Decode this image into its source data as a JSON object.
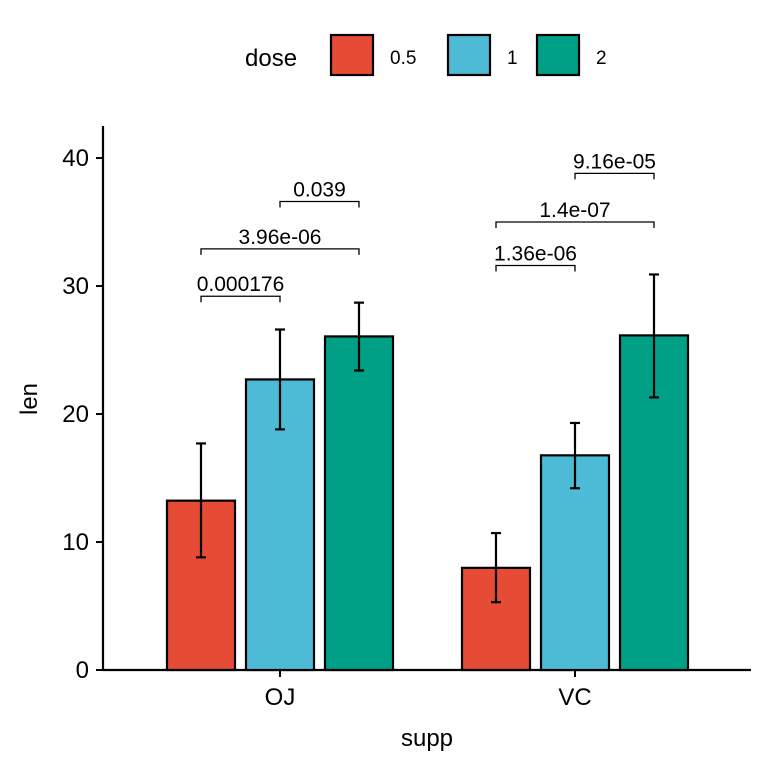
{
  "chart_data": {
    "type": "bar",
    "title": "",
    "xlabel": "supp",
    "ylabel": "len",
    "ylim": [
      0,
      42.5
    ],
    "yticks": [
      0,
      10,
      20,
      30,
      40
    ],
    "grid": false,
    "categories": [
      "OJ",
      "VC"
    ],
    "legend": {
      "title": "dose",
      "position": "top",
      "entries": [
        {
          "label": "0.5",
          "color": "#E64B35"
        },
        {
          "label": "1",
          "color": "#4DBBD5"
        },
        {
          "label": "2",
          "color": "#00A087"
        }
      ]
    },
    "series": [
      {
        "name": "0.5",
        "color": "#E64B35",
        "values": [
          13.23,
          7.98
        ],
        "error_low": [
          8.8,
          5.3
        ],
        "error_high": [
          17.7,
          10.7
        ]
      },
      {
        "name": "1",
        "color": "#4DBBD5",
        "values": [
          22.7,
          16.77
        ],
        "error_low": [
          18.8,
          14.2
        ],
        "error_high": [
          26.6,
          19.3
        ]
      },
      {
        "name": "2",
        "color": "#00A087",
        "values": [
          26.06,
          26.14
        ],
        "error_low": [
          23.4,
          21.3
        ],
        "error_high": [
          28.7,
          30.9
        ]
      }
    ],
    "annotations": [
      {
        "category": "OJ",
        "from": "0.5",
        "to": "1",
        "y": 29.2,
        "label": "0.000176"
      },
      {
        "category": "OJ",
        "from": "0.5",
        "to": "2",
        "y": 32.9,
        "label": "3.96e-06"
      },
      {
        "category": "OJ",
        "from": "1",
        "to": "2",
        "y": 36.6,
        "label": "0.039"
      },
      {
        "category": "VC",
        "from": "0.5",
        "to": "1",
        "y": 31.6,
        "label": "1.36e-06"
      },
      {
        "category": "VC",
        "from": "0.5",
        "to": "2",
        "y": 35.0,
        "label": "1.4e-07"
      },
      {
        "category": "VC",
        "from": "1",
        "to": "2",
        "y": 38.8,
        "label": "9.16e-05"
      }
    ]
  }
}
